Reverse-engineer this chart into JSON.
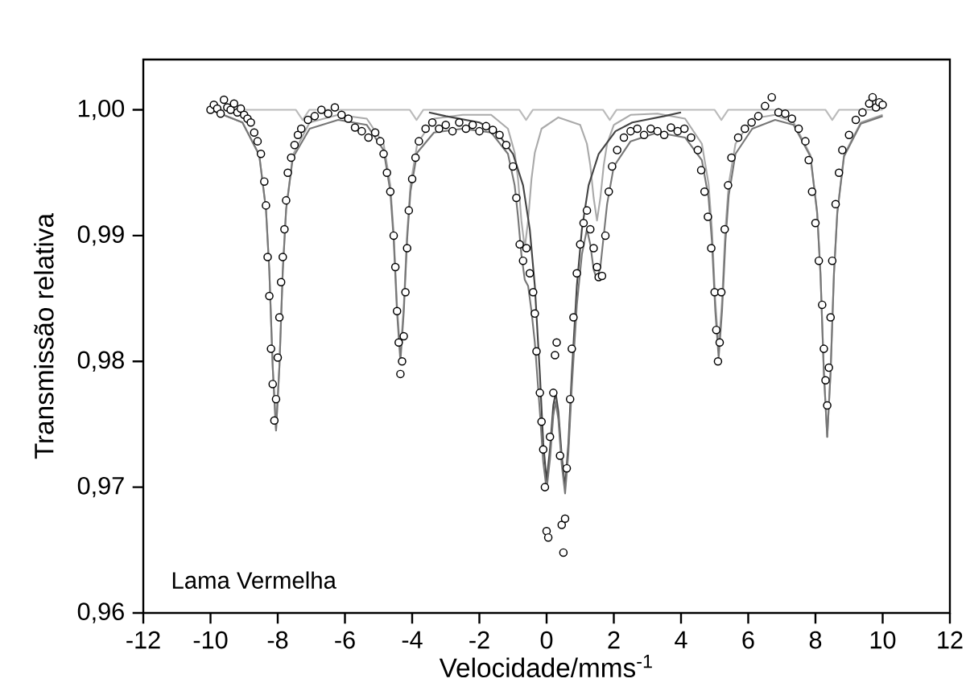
{
  "chart_data": {
    "type": "scatter",
    "xlabel": "Velocidade/mms$^{-1}$",
    "ylabel": "Transmissão relativa",
    "annotations": [
      "Lama Vermelha"
    ],
    "marker": "circle",
    "xlim": [
      -12,
      12
    ],
    "xticks": [
      -12,
      -10,
      -8,
      -6,
      -4,
      -2,
      0,
      2,
      4,
      6,
      8,
      10,
      12
    ],
    "ylim": [
      0.96,
      1.004
    ],
    "yticks": [
      {
        "value": 0.96,
        "label": "0,96"
      },
      {
        "value": 0.97,
        "label": "0,97"
      },
      {
        "value": 0.98,
        "label": "0,98"
      },
      {
        "value": 0.99,
        "label": "0,99"
      },
      {
        "value": 1.0,
        "label": "1,00"
      }
    ],
    "series": [
      {
        "type": "line",
        "marker": "none",
        "color": "#bbbbbb",
        "x": [
          -10.0,
          -7.46,
          -7.26,
          -7.06,
          -4.07,
          -3.87,
          -3.67,
          -0.81,
          -0.61,
          -0.41,
          1.68,
          1.88,
          2.08,
          5.0,
          5.2,
          5.4,
          8.3,
          8.5,
          8.7,
          10.0
        ],
        "values": [
          1.0,
          1.0,
          0.9992,
          1.0,
          1.0,
          0.9992,
          1.0,
          1.0,
          0.9992,
          1.0,
          1.0,
          0.9992,
          1.0,
          1.0,
          0.9992,
          1.0,
          1.0,
          0.9992,
          1.0,
          1.0
        ]
      },
      {
        "type": "line",
        "marker": "none",
        "color": "#aaaaaa",
        "x": [
          -10.0,
          -9.05,
          -8.55,
          -8.35,
          -8.25,
          -8.15,
          -8.05,
          -7.95,
          -7.85,
          -7.75,
          -7.55,
          -7.05,
          -6.2,
          -5.35,
          -4.85,
          -4.65,
          -4.55,
          -4.45,
          -4.35,
          -4.25,
          -4.15,
          -4.05,
          -3.85,
          -3.35,
          -2.5,
          -1.65,
          -1.15,
          -0.95,
          -0.85,
          -0.75,
          -0.65,
          -0.55,
          -0.45,
          -0.35,
          -0.15,
          0.35,
          1.0,
          1.2,
          1.3,
          1.4,
          1.5,
          1.6,
          1.7,
          1.8,
          2.0,
          2.5,
          3.3,
          4.12,
          4.62,
          4.82,
          4.92,
          5.02,
          5.12,
          5.22,
          5.32,
          5.42,
          5.62,
          6.12,
          6.8,
          7.35,
          7.85,
          8.05,
          8.15,
          8.25,
          8.35,
          8.45,
          8.55,
          8.65,
          8.85,
          9.35,
          10.0
        ],
        "values": [
          1.0,
          0.999,
          0.9964,
          0.9921,
          0.9872,
          0.9796,
          0.9745,
          0.9796,
          0.9872,
          0.9921,
          0.9964,
          0.999,
          0.9996,
          0.9993,
          0.9973,
          0.994,
          0.9902,
          0.9844,
          0.9805,
          0.9844,
          0.9902,
          0.994,
          0.9973,
          0.9993,
          0.9996,
          0.9996,
          0.9985,
          0.9966,
          0.9945,
          0.9912,
          0.989,
          0.9912,
          0.9945,
          0.9966,
          0.9985,
          0.9994,
          0.9988,
          0.9973,
          0.9956,
          0.993,
          0.9912,
          0.993,
          0.9956,
          0.9973,
          0.9988,
          0.9996,
          0.9997,
          0.9993,
          0.9973,
          0.9941,
          0.9905,
          0.9848,
          0.981,
          0.9848,
          0.9905,
          0.9941,
          0.9973,
          0.9993,
          0.9996,
          0.999,
          0.9964,
          0.9919,
          0.987,
          0.9792,
          0.974,
          0.9792,
          0.987,
          0.9919,
          0.9964,
          0.999,
          0.9996
        ]
      },
      {
        "type": "line",
        "marker": "none",
        "color": "#444444",
        "x": [
          -3.5,
          -3.0,
          -2.0,
          -1.5,
          -1.0,
          -0.7,
          -0.5,
          -0.35,
          -0.2,
          -0.1,
          0.0,
          0.1,
          0.2,
          0.27,
          0.35,
          0.45,
          0.55,
          0.65,
          0.75,
          0.9,
          1.05,
          1.25,
          1.55,
          2.05,
          2.55,
          3.5,
          4.0
        ],
        "values": [
          0.9998,
          0.9995,
          0.999,
          0.9983,
          0.9965,
          0.994,
          0.9905,
          0.986,
          0.979,
          0.9735,
          0.9705,
          0.973,
          0.9765,
          0.9775,
          0.976,
          0.9725,
          0.97,
          0.9735,
          0.979,
          0.986,
          0.9905,
          0.994,
          0.9965,
          0.9983,
          0.999,
          0.9995,
          0.9998
        ]
      },
      {
        "type": "line",
        "marker": "none",
        "color": "#777777",
        "x": [
          -10.0,
          -9.05,
          -8.55,
          -8.35,
          -8.25,
          -8.15,
          -8.05,
          -7.95,
          -7.85,
          -7.75,
          -7.55,
          -7.05,
          -6.2,
          -5.35,
          -4.85,
          -4.65,
          -4.55,
          -4.45,
          -4.35,
          -4.25,
          -4.15,
          -4.05,
          -3.85,
          -3.35,
          -2.5,
          -1.65,
          -1.15,
          -0.95,
          -0.85,
          -0.75,
          -0.65,
          -0.55,
          -0.45,
          -0.35,
          -0.2,
          -0.1,
          0.0,
          0.1,
          0.2,
          0.27,
          0.35,
          0.45,
          0.55,
          0.65,
          0.75,
          0.9,
          1.05,
          1.2,
          1.3,
          1.4,
          1.5,
          1.6,
          1.7,
          1.8,
          2.0,
          2.5,
          3.3,
          4.12,
          4.62,
          4.82,
          4.92,
          5.02,
          5.12,
          5.22,
          5.32,
          5.42,
          5.62,
          6.12,
          6.8,
          7.35,
          7.85,
          8.05,
          8.15,
          8.25,
          8.35,
          8.45,
          8.55,
          8.65,
          8.85,
          9.35,
          10.0
        ],
        "values": [
          1.0,
          0.999,
          0.9964,
          0.9921,
          0.9872,
          0.9796,
          0.9745,
          0.9796,
          0.9872,
          0.9921,
          0.9962,
          0.9985,
          0.9992,
          0.9988,
          0.9968,
          0.9935,
          0.9897,
          0.9839,
          0.98,
          0.9839,
          0.9897,
          0.9935,
          0.9966,
          0.9982,
          0.9985,
          0.9982,
          0.9965,
          0.994,
          0.9915,
          0.9885,
          0.9865,
          0.986,
          0.984,
          0.9815,
          0.976,
          0.972,
          0.9698,
          0.9722,
          0.9757,
          0.9768,
          0.9754,
          0.9718,
          0.9695,
          0.9728,
          0.978,
          0.9845,
          0.9885,
          0.9905,
          0.9893,
          0.9873,
          0.9865,
          0.9875,
          0.99,
          0.9925,
          0.9955,
          0.9975,
          0.9982,
          0.9978,
          0.996,
          0.993,
          0.9895,
          0.984,
          0.9803,
          0.984,
          0.9895,
          0.9932,
          0.9965,
          0.9985,
          0.9992,
          0.9988,
          0.9963,
          0.9918,
          0.9869,
          0.9791,
          0.974,
          0.9791,
          0.9869,
          0.9918,
          0.9963,
          0.9989,
          0.9995
        ]
      },
      {
        "color": "#000000",
        "x": [
          -10.0,
          -9.9,
          -9.8,
          -9.7,
          -9.6,
          -9.5,
          -9.4,
          -9.3,
          -9.2,
          -9.1,
          -9.0,
          -8.9,
          -8.8,
          -8.7,
          -8.6,
          -8.5,
          -8.4,
          -8.35,
          -8.3,
          -8.25,
          -8.2,
          -8.15,
          -8.1,
          -8.05,
          -8.0,
          -7.95,
          -7.9,
          -7.85,
          -7.8,
          -7.75,
          -7.7,
          -7.6,
          -7.5,
          -7.4,
          -7.3,
          -7.1,
          -6.9,
          -6.7,
          -6.5,
          -6.3,
          -6.1,
          -5.9,
          -5.7,
          -5.5,
          -5.3,
          -5.1,
          -4.95,
          -4.85,
          -4.75,
          -4.65,
          -4.55,
          -4.5,
          -4.45,
          -4.4,
          -4.35,
          -4.3,
          -4.25,
          -4.2,
          -4.15,
          -4.1,
          -4.0,
          -3.9,
          -3.8,
          -3.6,
          -3.4,
          -3.2,
          -3.0,
          -2.8,
          -2.6,
          -2.4,
          -2.2,
          -2.0,
          -1.8,
          -1.6,
          -1.4,
          -1.2,
          -1.0,
          -0.9,
          -0.8,
          -0.7,
          -0.6,
          -0.5,
          -0.4,
          -0.35,
          -0.3,
          -0.2,
          -0.15,
          -0.1,
          -0.05,
          0.0,
          0.05,
          0.1,
          0.2,
          0.25,
          0.3,
          0.4,
          0.45,
          0.5,
          0.55,
          0.6,
          0.7,
          0.75,
          0.8,
          0.9,
          1.0,
          1.1,
          1.2,
          1.3,
          1.4,
          1.5,
          1.55,
          1.65,
          1.75,
          1.85,
          1.95,
          2.1,
          2.3,
          2.5,
          2.7,
          2.9,
          3.1,
          3.3,
          3.5,
          3.7,
          3.9,
          4.1,
          4.3,
          4.5,
          4.6,
          4.7,
          4.8,
          4.9,
          5.0,
          5.05,
          5.1,
          5.15,
          5.2,
          5.3,
          5.4,
          5.5,
          5.7,
          5.9,
          6.1,
          6.3,
          6.5,
          6.7,
          6.9,
          7.1,
          7.3,
          7.5,
          7.7,
          7.8,
          7.9,
          8.0,
          8.1,
          8.2,
          8.25,
          8.3,
          8.35,
          8.4,
          8.45,
          8.5,
          8.6,
          8.7,
          8.8,
          9.0,
          9.2,
          9.4,
          9.6,
          9.7,
          9.8,
          9.9,
          10.0
        ],
        "values": [
          1.0,
          1.0004,
          1.0001,
          0.9997,
          1.0008,
          1.0002,
          1.0,
          1.0005,
          0.9998,
          1.0001,
          0.9996,
          0.9993,
          0.999,
          0.9982,
          0.9975,
          0.9965,
          0.9943,
          0.9924,
          0.9883,
          0.9852,
          0.981,
          0.9782,
          0.9753,
          0.977,
          0.9803,
          0.9835,
          0.9863,
          0.9883,
          0.9905,
          0.9928,
          0.995,
          0.9962,
          0.9972,
          0.998,
          0.9985,
          0.9992,
          0.9995,
          1.0,
          0.9997,
          1.0002,
          0.9996,
          0.9993,
          0.9986,
          0.9983,
          0.9978,
          0.9982,
          0.9975,
          0.9965,
          0.995,
          0.9935,
          0.99,
          0.9875,
          0.984,
          0.9815,
          0.979,
          0.98,
          0.982,
          0.9855,
          0.989,
          0.992,
          0.9945,
          0.9962,
          0.9975,
          0.9985,
          0.999,
          0.9985,
          0.9988,
          0.9983,
          0.999,
          0.9985,
          0.9988,
          0.9983,
          0.9987,
          0.9984,
          0.998,
          0.9972,
          0.9955,
          0.993,
          0.9893,
          0.988,
          0.989,
          0.987,
          0.9855,
          0.9838,
          0.9808,
          0.9775,
          0.9752,
          0.973,
          0.97,
          0.9665,
          0.966,
          0.974,
          0.9775,
          0.9805,
          0.9815,
          0.9725,
          0.967,
          0.9648,
          0.9675,
          0.9715,
          0.977,
          0.981,
          0.9835,
          0.987,
          0.9893,
          0.991,
          0.992,
          0.9905,
          0.989,
          0.9875,
          0.9867,
          0.9868,
          0.99,
          0.9935,
          0.9955,
          0.9968,
          0.9978,
          0.9983,
          0.9985,
          0.998,
          0.9985,
          0.9983,
          0.998,
          0.9986,
          0.9983,
          0.9985,
          0.9978,
          0.9968,
          0.9952,
          0.9935,
          0.9915,
          0.989,
          0.9855,
          0.9825,
          0.98,
          0.9815,
          0.9855,
          0.9905,
          0.994,
          0.9962,
          0.9978,
          0.9985,
          0.999,
          0.9995,
          1.0003,
          1.001,
          0.9998,
          0.9997,
          0.9993,
          0.9985,
          0.9975,
          0.996,
          0.9935,
          0.991,
          0.988,
          0.9845,
          0.981,
          0.9785,
          0.9765,
          0.9795,
          0.9835,
          0.988,
          0.9925,
          0.995,
          0.9968,
          0.998,
          0.9992,
          0.9998,
          1.0005,
          1.001,
          1.0002,
          1.0006,
          1.0004
        ]
      }
    ]
  }
}
